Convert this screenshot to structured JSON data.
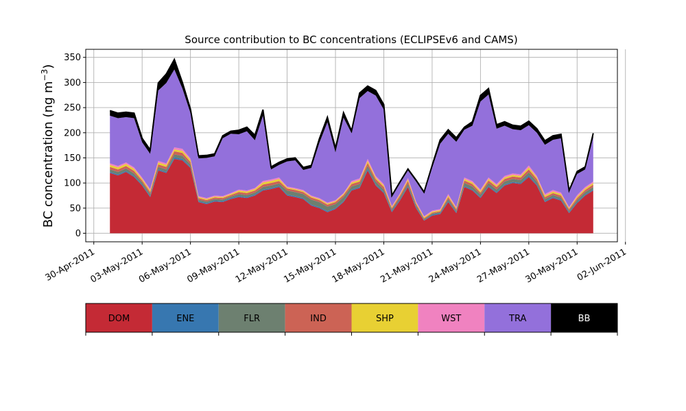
{
  "chart_data": {
    "type": "area",
    "title": "Source contribution to BC concentrations (ECLIPSEv6 and CAMS)",
    "ylabel_main": "BC concentration (ng m",
    "ylabel_sup": "−3",
    "ylabel_close": ")",
    "xlabel": "",
    "x_start": "2011-05-01",
    "x_end": "2011-05-31",
    "xlim": [
      "2011-04-29T12:00",
      "2011-06-01T12:00"
    ],
    "ylim": [
      -17,
      366
    ],
    "grid": true,
    "x_ticks": [
      "2011-04-30",
      "2011-05-03",
      "2011-05-06",
      "2011-05-09",
      "2011-05-12",
      "2011-05-15",
      "2011-05-18",
      "2011-05-21",
      "2011-05-24",
      "2011-05-27",
      "2011-05-30",
      "2011-06-02"
    ],
    "x_tick_labels": [
      "30-Apr-2011",
      "03-May-2011",
      "06-May-2011",
      "09-May-2011",
      "12-May-2011",
      "15-May-2011",
      "18-May-2011",
      "21-May-2011",
      "24-May-2011",
      "27-May-2011",
      "30-May-2011",
      "02-Jun-2011"
    ],
    "y_ticks": [
      0,
      50,
      100,
      150,
      200,
      250,
      300,
      350
    ],
    "y_tick_labels": [
      "0",
      "50",
      "100",
      "150",
      "200",
      "250",
      "300",
      "350"
    ],
    "dates": [
      "2011-05-01",
      "2011-05-01T12:00",
      "2011-05-02",
      "2011-05-02T12:00",
      "2011-05-03",
      "2011-05-03T12:00",
      "2011-05-04",
      "2011-05-04T12:00",
      "2011-05-05",
      "2011-05-05T12:00",
      "2011-05-06",
      "2011-05-06T12:00",
      "2011-05-07",
      "2011-05-07T12:00",
      "2011-05-08",
      "2011-05-08T12:00",
      "2011-05-09",
      "2011-05-09T12:00",
      "2011-05-10",
      "2011-05-10T12:00",
      "2011-05-11",
      "2011-05-11T12:00",
      "2011-05-12",
      "2011-05-12T12:00",
      "2011-05-13",
      "2011-05-13T12:00",
      "2011-05-14",
      "2011-05-14T12:00",
      "2011-05-15",
      "2011-05-15T12:00",
      "2011-05-16",
      "2011-05-16T12:00",
      "2011-05-17",
      "2011-05-17T12:00",
      "2011-05-18",
      "2011-05-18T12:00",
      "2011-05-19",
      "2011-05-19T12:00",
      "2011-05-20",
      "2011-05-20T12:00",
      "2011-05-21",
      "2011-05-21T12:00",
      "2011-05-22",
      "2011-05-22T12:00",
      "2011-05-23",
      "2011-05-23T12:00",
      "2011-05-24",
      "2011-05-24T12:00",
      "2011-05-25",
      "2011-05-25T12:00",
      "2011-05-26",
      "2011-05-26T12:00",
      "2011-05-27",
      "2011-05-27T12:00",
      "2011-05-28",
      "2011-05-28T12:00",
      "2011-05-29",
      "2011-05-29T12:00",
      "2011-05-30",
      "2011-05-30T12:00",
      "2011-05-31"
    ],
    "series": [
      {
        "name": "DOM",
        "color": "#c42a35",
        "values": [
          120,
          115,
          122,
          112,
          95,
          72,
          125,
          120,
          148,
          145,
          130,
          62,
          58,
          63,
          62,
          68,
          72,
          70,
          75,
          85,
          88,
          92,
          75,
          72,
          68,
          55,
          50,
          42,
          48,
          62,
          85,
          90,
          125,
          95,
          80,
          42,
          65,
          92,
          50,
          25,
          35,
          38,
          62,
          40,
          92,
          85,
          70,
          92,
          80,
          95,
          100,
          98,
          112,
          95,
          62,
          70,
          65,
          40,
          60,
          75,
          85
        ]
      },
      {
        "name": "ENE",
        "color": "#3777b0",
        "values": [
          2,
          2,
          2,
          2,
          2,
          2,
          2,
          2,
          3,
          3,
          2,
          2,
          2,
          2,
          2,
          2,
          2,
          2,
          2,
          2,
          2,
          2,
          2,
          2,
          2,
          2,
          2,
          2,
          2,
          2,
          2,
          2,
          3,
          2,
          2,
          2,
          2,
          2,
          2,
          1,
          2,
          2,
          2,
          2,
          2,
          2,
          2,
          2,
          2,
          2,
          2,
          2,
          3,
          2,
          2,
          2,
          2,
          2,
          2,
          2,
          2
        ]
      },
      {
        "name": "FLR",
        "color": "#6d8070",
        "values": [
          5,
          5,
          5,
          5,
          4,
          4,
          5,
          5,
          6,
          6,
          5,
          3,
          3,
          3,
          3,
          3,
          4,
          4,
          4,
          5,
          5,
          5,
          8,
          8,
          8,
          10,
          10,
          9,
          8,
          8,
          6,
          6,
          6,
          6,
          5,
          3,
          4,
          5,
          4,
          2,
          2,
          2,
          4,
          3,
          6,
          6,
          5,
          6,
          5,
          6,
          6,
          6,
          6,
          6,
          4,
          4,
          4,
          3,
          4,
          5,
          5
        ]
      },
      {
        "name": "IND",
        "color": "#cc6355",
        "values": [
          5,
          5,
          5,
          5,
          4,
          4,
          5,
          5,
          6,
          6,
          5,
          3,
          3,
          3,
          3,
          3,
          4,
          4,
          4,
          5,
          5,
          5,
          4,
          4,
          4,
          4,
          4,
          4,
          4,
          4,
          5,
          5,
          6,
          5,
          5,
          3,
          4,
          5,
          3,
          2,
          2,
          2,
          4,
          3,
          5,
          5,
          4,
          5,
          5,
          5,
          5,
          5,
          6,
          5,
          4,
          4,
          4,
          3,
          4,
          4,
          5
        ]
      },
      {
        "name": "SHP",
        "color": "#e8d033",
        "values": [
          4,
          4,
          4,
          4,
          3,
          3,
          4,
          4,
          4,
          4,
          4,
          2,
          2,
          2,
          2,
          2,
          3,
          3,
          3,
          4,
          4,
          4,
          2,
          2,
          2,
          2,
          2,
          2,
          2,
          2,
          3,
          3,
          4,
          3,
          3,
          2,
          2,
          3,
          2,
          2,
          2,
          2,
          3,
          2,
          3,
          3,
          3,
          3,
          3,
          3,
          3,
          3,
          4,
          3,
          3,
          3,
          3,
          2,
          3,
          3,
          3
        ]
      },
      {
        "name": "WST",
        "color": "#f082c0",
        "values": [
          3,
          3,
          3,
          3,
          3,
          3,
          3,
          3,
          4,
          4,
          3,
          2,
          2,
          2,
          2,
          2,
          2,
          2,
          2,
          3,
          3,
          3,
          2,
          2,
          2,
          2,
          2,
          2,
          2,
          2,
          3,
          3,
          4,
          3,
          3,
          2,
          2,
          3,
          2,
          2,
          2,
          2,
          3,
          2,
          3,
          3,
          3,
          3,
          3,
          3,
          3,
          3,
          4,
          3,
          3,
          3,
          3,
          2,
          3,
          3,
          3
        ]
      },
      {
        "name": "TRA",
        "color": "#9370db",
        "values": [
          95,
          95,
          90,
          98,
          70,
          70,
          140,
          160,
          155,
          120,
          90,
          75,
          80,
          78,
          115,
          118,
          110,
          118,
          95,
          130,
          20,
          25,
          50,
          55,
          40,
          55,
          110,
          160,
          95,
          150,
          95,
          160,
          135,
          160,
          148,
          18,
          20,
          15,
          40,
          45,
          85,
          130,
          120,
          130,
          95,
          110,
          175,
          165,
          110,
          100,
          88,
          88,
          80,
          86,
          98,
          100,
          108,
          30,
          42,
          35,
          88
        ]
      },
      {
        "name": "BB",
        "color": "#000000",
        "values": [
          10,
          10,
          10,
          10,
          8,
          8,
          15,
          18,
          20,
          12,
          8,
          5,
          5,
          5,
          5,
          5,
          8,
          8,
          10,
          12,
          5,
          5,
          5,
          5,
          5,
          5,
          8,
          10,
          8,
          10,
          5,
          10,
          10,
          10,
          10,
          3,
          3,
          3,
          3,
          3,
          5,
          8,
          8,
          8,
          5,
          8,
          12,
          12,
          8,
          8,
          8,
          8,
          8,
          8,
          8,
          8,
          8,
          3,
          5,
          5,
          8
        ]
      }
    ]
  },
  "legend": {
    "items": [
      {
        "label": "DOM",
        "color": "#c42a35",
        "text_color": "#000000"
      },
      {
        "label": "ENE",
        "color": "#3777b0",
        "text_color": "#000000"
      },
      {
        "label": "FLR",
        "color": "#6d8070",
        "text_color": "#000000"
      },
      {
        "label": "IND",
        "color": "#cc6355",
        "text_color": "#000000"
      },
      {
        "label": "SHP",
        "color": "#e8d033",
        "text_color": "#000000"
      },
      {
        "label": "WST",
        "color": "#f082c0",
        "text_color": "#000000"
      },
      {
        "label": "TRA",
        "color": "#9370db",
        "text_color": "#000000"
      },
      {
        "label": "BB",
        "color": "#000000",
        "text_color": "#ffffff"
      }
    ]
  }
}
